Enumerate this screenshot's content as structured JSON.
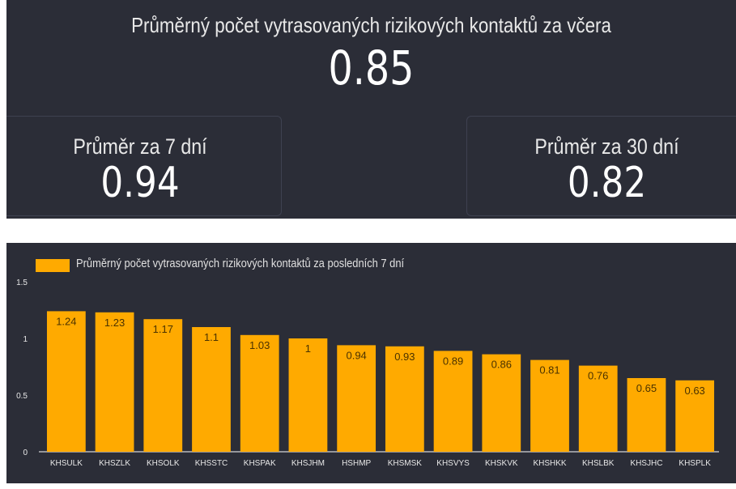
{
  "headline": {
    "title": "Průměrný počet vytrasovaných rizikových kontaktů za včera",
    "value": "0.85"
  },
  "cards": {
    "left": {
      "label": "Průměr za 7 dní",
      "value": "0.94"
    },
    "right": {
      "label": "Průměr za 30 dní",
      "value": "0.82"
    }
  },
  "colors": {
    "background": "#2b2d37",
    "bar": "#ffaa00",
    "bar_label": "#4a3200",
    "text": "#e8e8e8"
  },
  "chart_data": {
    "type": "bar",
    "categories": [
      "KHSULK",
      "KHSZLK",
      "KHSOLK",
      "KHSSTC",
      "KHSPAK",
      "KHSJHM",
      "HSHMP",
      "KHSMSK",
      "KHSVYS",
      "KHSKVK",
      "KHSHKK",
      "KHSLBK",
      "KHSJHC",
      "KHSPLK"
    ],
    "series": [
      {
        "name": "Průměrný počet vytrasovaných rizikových kontaktů za posledních 7 dní",
        "values": [
          1.24,
          1.23,
          1.17,
          1.1,
          1.03,
          1,
          0.94,
          0.93,
          0.89,
          0.86,
          0.81,
          0.76,
          0.65,
          0.63
        ]
      }
    ],
    "ylim": [
      0,
      1.5
    ],
    "yticks": [
      "0",
      "0.5",
      "1",
      "1.5"
    ],
    "legend_position": "top-left",
    "grid": false
  }
}
